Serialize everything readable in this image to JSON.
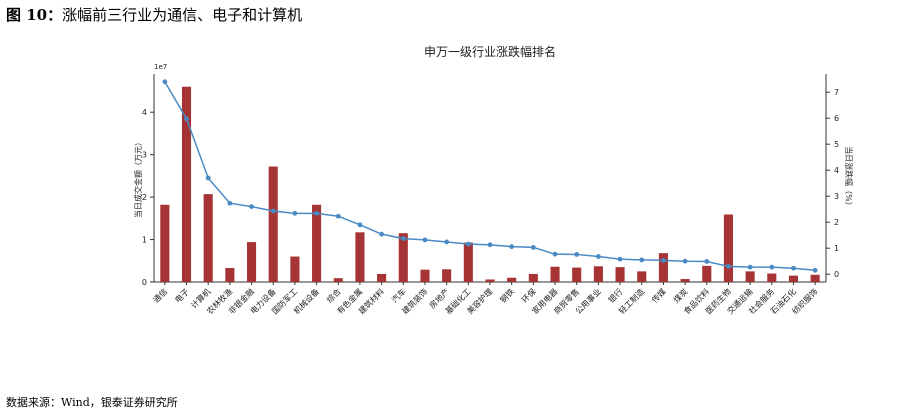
{
  "figure": {
    "title_prefix": "图 10：",
    "title_text": "涨幅前三行业为通信、电子和计算机",
    "source_label": "数据来源：",
    "source_text": "Wind，银泰证券研究所"
  },
  "chart_data": {
    "type": "bar",
    "title": "申万一级行业涨跌幅排名",
    "left_axis_label": "当日成交金额（万元）",
    "right_axis_label": "当日涨跌幅（%）",
    "left_offset_text": "1e7",
    "left_ylim": [
      0,
      4.9
    ],
    "right_ylim": [
      -0.3,
      7.7
    ],
    "left_ticks": [
      0,
      1,
      2,
      3,
      4
    ],
    "right_ticks": [
      0,
      1,
      2,
      3,
      4,
      5,
      6,
      7
    ],
    "bar_color": "#a63434",
    "line_color": "#4a8ac4",
    "categories": [
      "通信",
      "电子",
      "计算机",
      "农林牧渔",
      "非银金融",
      "电力设备",
      "国防军工",
      "机械设备",
      "综合",
      "有色金属",
      "建筑材料",
      "汽车",
      "建筑装饰",
      "房地产",
      "基础化工",
      "美容护理",
      "钢铁",
      "环保",
      "家用电器",
      "商贸零售",
      "公用事业",
      "银行",
      "轻工制造",
      "传媒",
      "煤炭",
      "食品饮料",
      "医药生物",
      "交通运输",
      "社会服务",
      "石油石化",
      "纺织服饰"
    ],
    "series": [
      {
        "name": "当日成交金额",
        "kind": "bar",
        "unit_multiplier": 10000000,
        "values": [
          1.82,
          4.6,
          2.07,
          0.33,
          0.94,
          2.72,
          0.6,
          1.82,
          0.09,
          1.17,
          0.19,
          1.15,
          0.29,
          0.3,
          0.93,
          0.06,
          0.1,
          0.19,
          0.36,
          0.34,
          0.37,
          0.35,
          0.25,
          0.68,
          0.07,
          0.38,
          1.59,
          0.25,
          0.2,
          0.15,
          0.17
        ]
      },
      {
        "name": "当日涨跌幅",
        "kind": "line",
        "values": [
          7.4,
          5.98,
          3.7,
          2.73,
          2.6,
          2.43,
          2.34,
          2.34,
          2.23,
          1.9,
          1.54,
          1.37,
          1.32,
          1.24,
          1.16,
          1.13,
          1.06,
          1.03,
          0.77,
          0.76,
          0.68,
          0.58,
          0.55,
          0.53,
          0.5,
          0.49,
          0.3,
          0.27,
          0.27,
          0.23,
          0.15
        ]
      }
    ]
  }
}
